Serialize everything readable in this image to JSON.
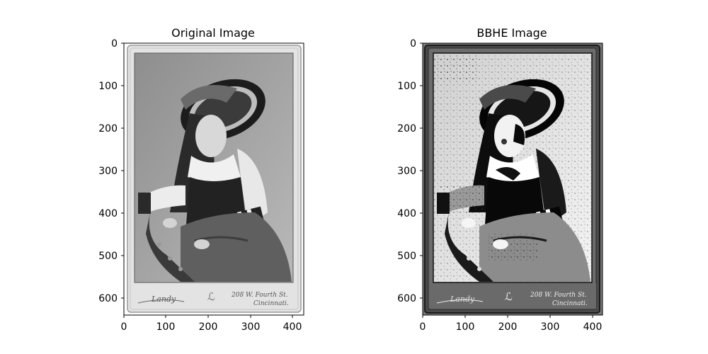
{
  "figure": {
    "panels": [
      {
        "title": "Original Image",
        "image_desc": "sepia-style vintage cabinet card photograph shown in grayscale: young girl in wide-brimmed hat with striped sleeves seated in a chair",
        "x_ticks": [
          "0",
          "100",
          "200",
          "300",
          "400"
        ],
        "y_ticks": [
          "0",
          "100",
          "200",
          "300",
          "400",
          "500",
          "600"
        ],
        "card_caption_left": "Landy",
        "card_caption_right_1": "208 W. Fourth St.",
        "card_caption_right_2": "Cincinnati."
      },
      {
        "title": "BBHE Image",
        "image_desc": "same photograph after bi-histogram equalization: higher contrast with speckled noise in the background",
        "x_ticks": [
          "0",
          "100",
          "200",
          "300",
          "400"
        ],
        "y_ticks": [
          "0",
          "100",
          "200",
          "300",
          "400",
          "500",
          "600"
        ],
        "card_caption_left": "Landy",
        "card_caption_right_1": "208 W. Fourth St.",
        "card_caption_right_2": "Cincinnati."
      }
    ]
  }
}
